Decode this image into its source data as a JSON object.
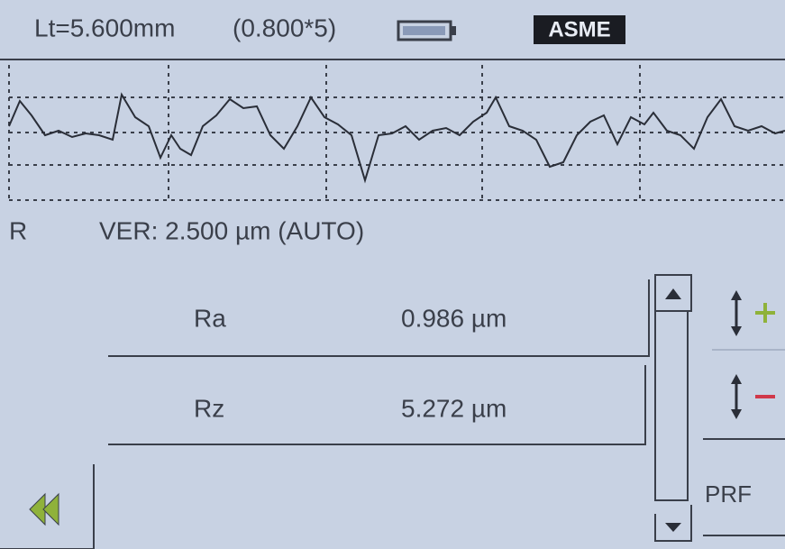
{
  "header": {
    "length": "Lt=5.600mm",
    "sampling": "(0.800*5)",
    "standard": "ASME"
  },
  "profile": {
    "type": "R",
    "vertical_scale": "VER: 2.500 µm (AUTO)"
  },
  "results": {
    "rows": [
      [
        "Ra",
        "0.986 µm"
      ],
      [
        "Rz",
        "5.272 µm"
      ]
    ]
  },
  "buttons": {
    "mode": "PRF"
  }
}
